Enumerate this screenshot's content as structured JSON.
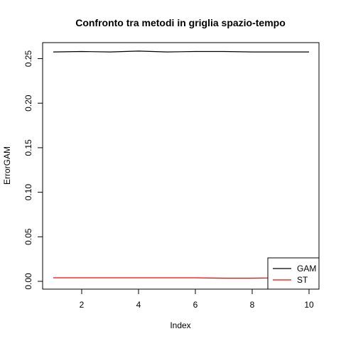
{
  "chart_data": {
    "type": "line",
    "title": "Confronto tra metodi in griglia spazio-tempo",
    "xlabel": "Index",
    "ylabel": "ErrorGAM",
    "xlim": [
      1,
      10
    ],
    "ylim": [
      0,
      0.26
    ],
    "x": [
      1,
      2,
      3,
      4,
      5,
      6,
      7,
      8,
      9,
      10
    ],
    "x_ticks": [
      "2",
      "4",
      "6",
      "8",
      "10"
    ],
    "y_ticks": [
      "0.00",
      "0.05",
      "0.10",
      "0.15",
      "0.20",
      "0.25"
    ],
    "series": [
      {
        "name": "GAM",
        "color": "#000000",
        "values": [
          0.2575,
          0.258,
          0.2575,
          0.2585,
          0.2575,
          0.258,
          0.258,
          0.2575,
          0.2575,
          0.2575
        ]
      },
      {
        "name": "ST",
        "color": "#ff0000",
        "values": [
          0.004,
          0.004,
          0.004,
          0.004,
          0.004,
          0.004,
          0.0035,
          0.0035,
          0.004,
          0.004
        ]
      }
    ],
    "legend_position": "bottom-right",
    "grid": false
  }
}
